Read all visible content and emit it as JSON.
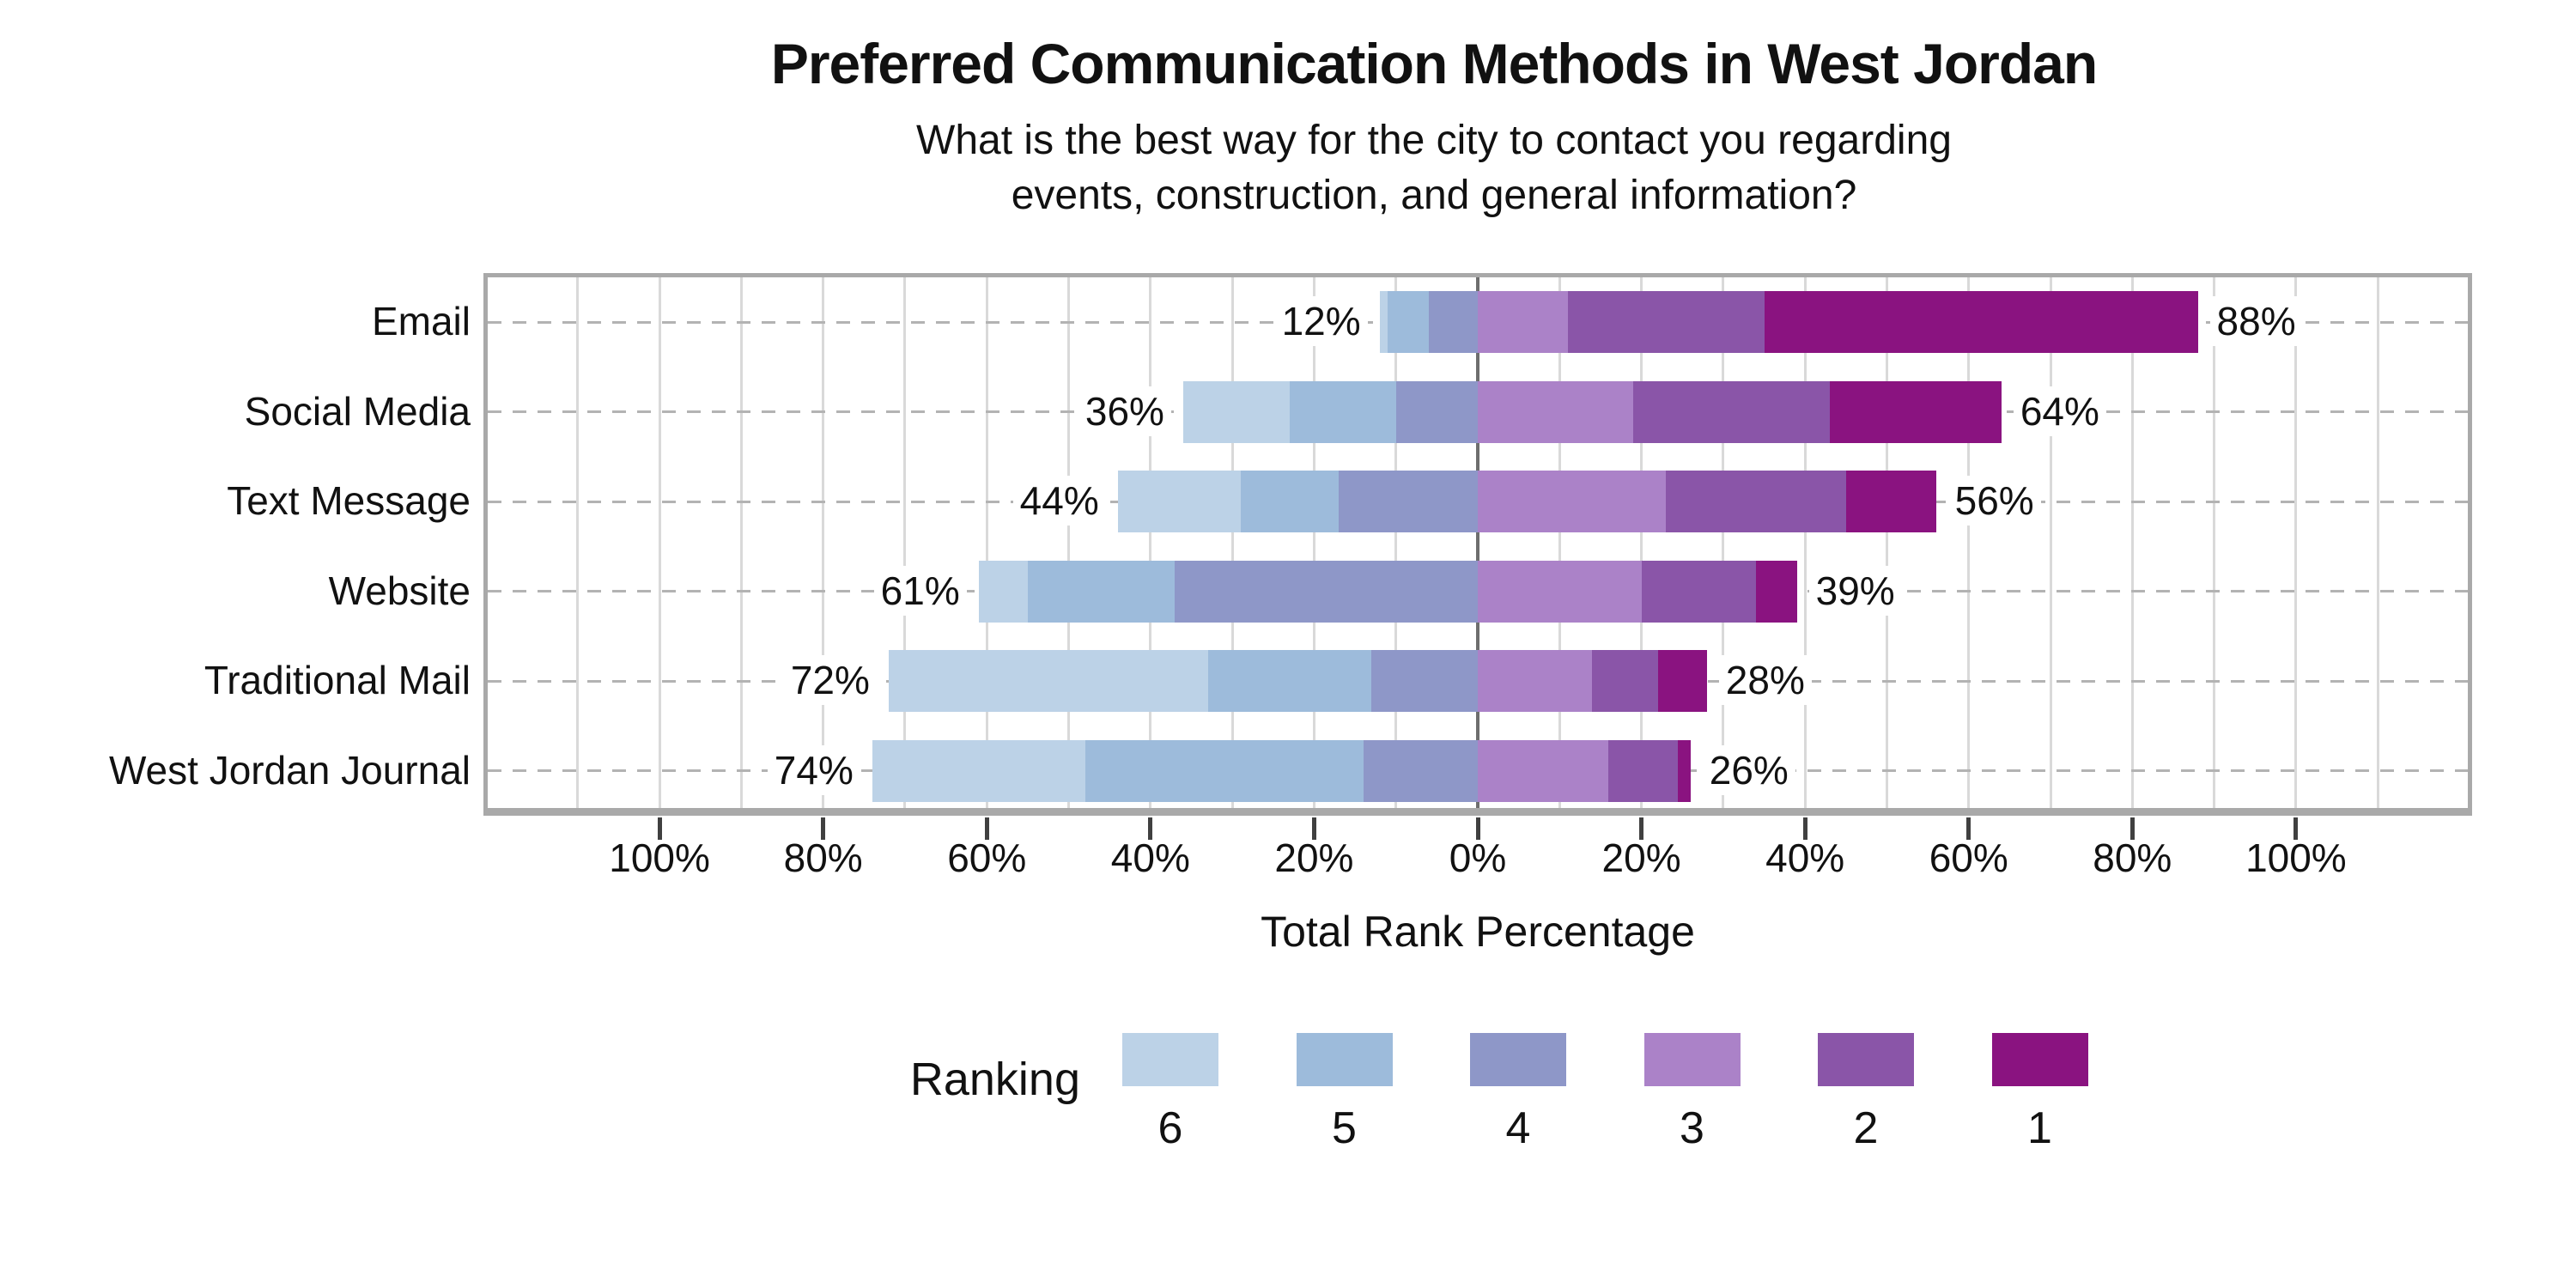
{
  "title": "Preferred Communication Methods in West Jordan",
  "subtitle_line1": "What is the best way for the city to contact you regarding",
  "subtitle_line2": "events, construction, and general information?",
  "xlabel": "Total Rank Percentage",
  "legend": {
    "label": "Ranking",
    "entries": [
      {
        "rank": "6",
        "color": "#bcd2e7"
      },
      {
        "rank": "5",
        "color": "#9dbbdb"
      },
      {
        "rank": "4",
        "color": "#8e97c8"
      },
      {
        "rank": "3",
        "color": "#ab82c8"
      },
      {
        "rank": "2",
        "color": "#8a55a8"
      },
      {
        "rank": "1",
        "color": "#8a1380"
      }
    ]
  },
  "axis": {
    "tick_values": [
      -100,
      -80,
      -60,
      -40,
      -20,
      0,
      20,
      40,
      60,
      80,
      100
    ],
    "tick_labels": [
      "100%",
      "80%",
      "60%",
      "40%",
      "20%",
      "0%",
      "20%",
      "40%",
      "60%",
      "80%",
      "100%"
    ],
    "range": [
      -121,
      121
    ],
    "minor_gridline_step": 10,
    "gridlines_on": true,
    "colors": {
      "minor_grid": "#d9d9d9",
      "zero_line": "#6e6e6e",
      "row_dash": "#b3b3b3",
      "border": "#a9a9a9",
      "tick": "#404040"
    }
  },
  "chart_data": {
    "type": "bar",
    "variant": "diverging-stacked-horizontal",
    "title": "Preferred Communication Methods in West Jordan",
    "xlabel": "Total Rank Percentage",
    "xlim": [
      -121,
      121
    ],
    "legend_position": "bottom",
    "categories": [
      "Email",
      "Social Media",
      "Text Message",
      "Website",
      "Traditional Mail",
      "West Jordan Journal"
    ],
    "left_totals": [
      12,
      36,
      44,
      61,
      72,
      74
    ],
    "right_totals": [
      88,
      64,
      56,
      39,
      28,
      26
    ],
    "left_total_labels": [
      "12%",
      "36%",
      "44%",
      "61%",
      "72%",
      "74%"
    ],
    "right_total_labels": [
      "88%",
      "64%",
      "56%",
      "39%",
      "28%",
      "26%"
    ],
    "series": [
      {
        "name": "6",
        "side": "left",
        "color": "#bcd2e7",
        "values": [
          1,
          13,
          15,
          6,
          39,
          26
        ]
      },
      {
        "name": "5",
        "side": "left",
        "color": "#9dbbdb",
        "values": [
          5,
          13,
          12,
          18,
          20,
          34
        ]
      },
      {
        "name": "4",
        "side": "left",
        "color": "#8e97c8",
        "values": [
          6,
          10,
          17,
          37,
          13,
          14
        ]
      },
      {
        "name": "3",
        "side": "right",
        "color": "#ab82c8",
        "values": [
          11,
          19,
          23,
          20,
          14,
          16
        ]
      },
      {
        "name": "2",
        "side": "right",
        "color": "#8a55a8",
        "values": [
          24,
          24,
          22,
          14,
          8,
          8.5
        ]
      },
      {
        "name": "1",
        "side": "right",
        "color": "#8a1380",
        "values": [
          53,
          21,
          11,
          5,
          6,
          1.5
        ]
      }
    ]
  }
}
